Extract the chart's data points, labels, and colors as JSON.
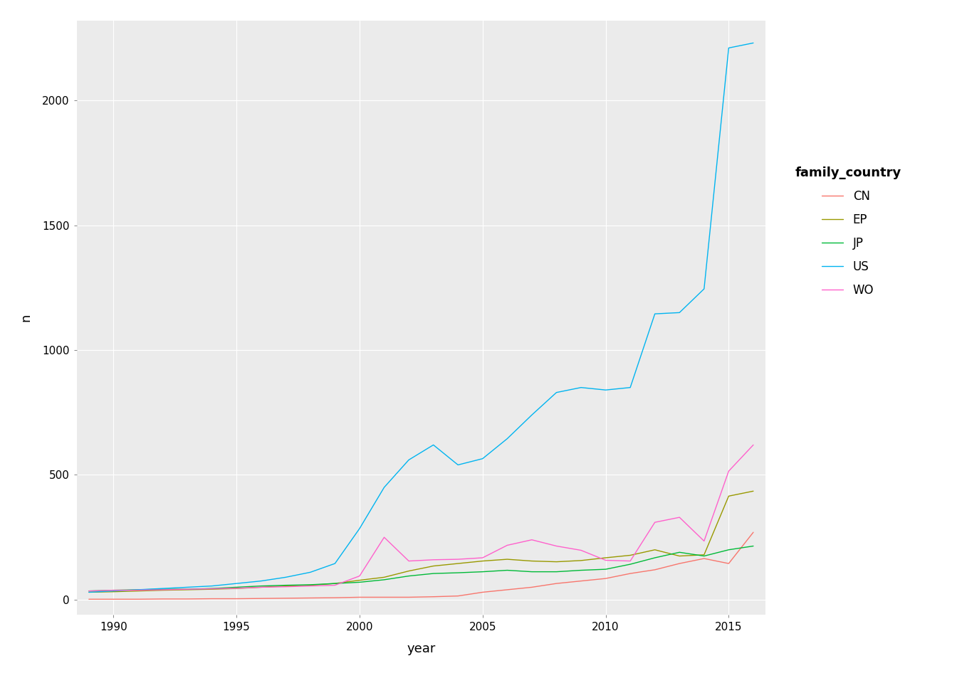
{
  "years": [
    1989,
    1990,
    1991,
    1992,
    1993,
    1994,
    1995,
    1996,
    1997,
    1998,
    1999,
    2000,
    2001,
    2002,
    2003,
    2004,
    2005,
    2006,
    2007,
    2008,
    2009,
    2010,
    2011,
    2012,
    2013,
    2014,
    2015,
    2016
  ],
  "CN": [
    2,
    2,
    2,
    3,
    3,
    4,
    4,
    5,
    6,
    7,
    8,
    10,
    10,
    10,
    12,
    15,
    30,
    40,
    50,
    65,
    75,
    85,
    105,
    120,
    145,
    165,
    145,
    270
  ],
  "EP": [
    30,
    32,
    35,
    38,
    40,
    42,
    45,
    50,
    55,
    58,
    65,
    78,
    90,
    115,
    135,
    145,
    155,
    162,
    155,
    152,
    157,
    168,
    178,
    200,
    175,
    180,
    415,
    435
  ],
  "JP": [
    35,
    38,
    40,
    42,
    42,
    45,
    50,
    55,
    58,
    60,
    65,
    70,
    80,
    95,
    105,
    108,
    112,
    118,
    112,
    112,
    118,
    122,
    142,
    168,
    190,
    175,
    200,
    215
  ],
  "US": [
    30,
    35,
    40,
    45,
    50,
    55,
    65,
    75,
    90,
    110,
    145,
    285,
    450,
    560,
    620,
    540,
    565,
    645,
    740,
    830,
    850,
    840,
    850,
    1145,
    1150,
    1245,
    2210,
    2230
  ],
  "WO": [
    35,
    38,
    38,
    40,
    42,
    44,
    46,
    50,
    52,
    55,
    58,
    95,
    250,
    155,
    160,
    162,
    168,
    218,
    240,
    215,
    198,
    158,
    155,
    310,
    330,
    235,
    515,
    620
  ],
  "colors": {
    "CN": "#F8766D",
    "EP": "#999900",
    "JP": "#00BA38",
    "US": "#00B4F0",
    "WO": "#FF61CC"
  },
  "xlabel": "year",
  "ylabel": "n",
  "legend_title": "family_country",
  "yticks": [
    0,
    500,
    1000,
    1500,
    2000
  ],
  "xticks": [
    1990,
    1995,
    2000,
    2005,
    2010,
    2015
  ],
  "ylim": [
    -60,
    2320
  ],
  "xlim": [
    1988.5,
    2016.5
  ],
  "panel_background": "#EBEBEB",
  "fig_background": "#FFFFFF",
  "grid_color": "#FFFFFF",
  "linewidth": 1.0,
  "axis_fontsize": 13,
  "tick_fontsize": 11,
  "legend_fontsize": 12,
  "legend_title_fontsize": 13
}
